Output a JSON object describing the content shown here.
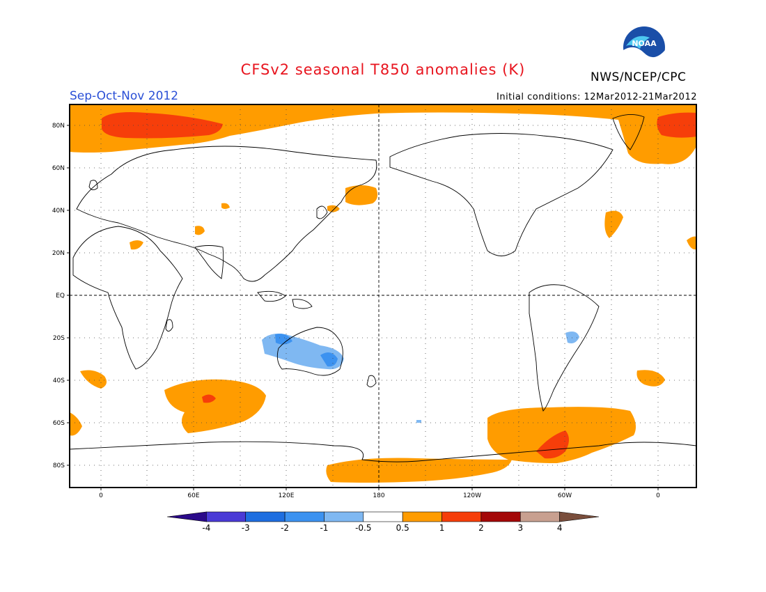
{
  "title": "CFSv2 seasonal T850 anomalies (K)",
  "season": "Sep-Oct-Nov 2012",
  "initial_conditions": "Initial conditions: 12Mar2012-21Mar2012",
  "agency": "NWS/NCEP/CPC",
  "logo": {
    "icon": "noaa-logo",
    "text": "NOAA"
  },
  "map": {
    "projection": "equirectangular",
    "lon_range": [
      -20,
      380
    ],
    "lat_range": [
      -90,
      90
    ],
    "lat_labels": [
      "80N",
      "60N",
      "40N",
      "20N",
      "EQ",
      "20S",
      "40S",
      "60S",
      "80S"
    ],
    "lon_labels": [
      "0",
      "60E",
      "120E",
      "180",
      "120W",
      "60W",
      "0"
    ],
    "grid": "dotted",
    "reference_lines": [
      "EQ",
      "180"
    ]
  },
  "colorbar": {
    "labels": [
      "-4",
      "-3",
      "-2",
      "-1",
      "-0.5",
      "0.5",
      "1",
      "2",
      "3",
      "4"
    ],
    "colors": [
      "#2b0a8a",
      "#4a3ad6",
      "#1e6ee0",
      "#3c92f0",
      "#7fb8f2",
      "#ffffff",
      "#ff9c00",
      "#f63e0a",
      "#a40808",
      "#c8a090",
      "#7a4e3c"
    ]
  }
}
